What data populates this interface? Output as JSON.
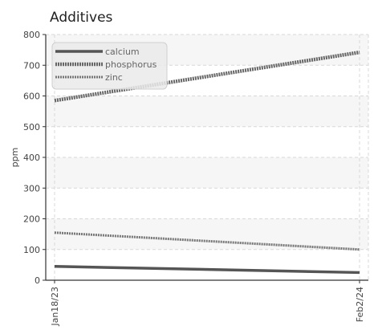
{
  "chart_data": {
    "type": "line",
    "title": "Additives",
    "xlabel": "",
    "ylabel": "ppm",
    "x": [
      "Jan18/23",
      "Feb2/24"
    ],
    "ylim": [
      0,
      800
    ],
    "yticks": [
      0,
      100,
      200,
      300,
      400,
      500,
      600,
      700,
      800
    ],
    "grid": true,
    "legend_position": "top-left",
    "series": [
      {
        "name": "calcium",
        "values": [
          45,
          25
        ],
        "color": "#555555",
        "style": "solid"
      },
      {
        "name": "phosphorus",
        "values": [
          585,
          742
        ],
        "color": "#666666",
        "style": "dotted-thick"
      },
      {
        "name": "zinc",
        "values": [
          155,
          100
        ],
        "color": "#777777",
        "style": "dotted"
      }
    ]
  }
}
